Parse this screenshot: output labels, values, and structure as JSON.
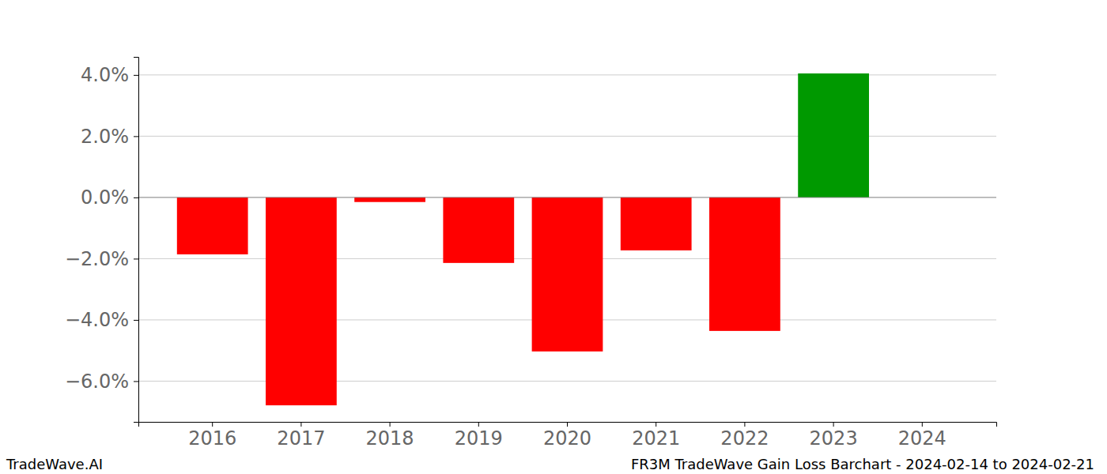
{
  "chart_data": {
    "type": "bar",
    "title": "FR3M TradeWave Gain Loss Barchart - 2024-02-14 to 2024-02-21",
    "annotations": [
      "TradeWave.AI"
    ],
    "categories": [
      "2016",
      "2017",
      "2018",
      "2019",
      "2020",
      "2021",
      "2022",
      "2023",
      "2024"
    ],
    "values": [
      -1.86,
      -6.79,
      -0.15,
      -2.14,
      -5.03,
      -1.73,
      -4.36,
      4.05,
      0
    ],
    "colors": [
      "#ff0000",
      "#ff0000",
      "#ff0000",
      "#ff0000",
      "#ff0000",
      "#ff0000",
      "#ff0000",
      "#009900",
      "#009900"
    ],
    "ylim": [
      -7.33,
      4.59
    ],
    "yticks": [
      {
        "value": -6,
        "label": "−6.0%"
      },
      {
        "value": -4,
        "label": "−4.0%"
      },
      {
        "value": -2,
        "label": "−2.0%"
      },
      {
        "value": 0,
        "label": "0.0%"
      },
      {
        "value": 2,
        "label": "2.0%"
      },
      {
        "value": 4,
        "label": "4.0%"
      }
    ],
    "grid": true
  }
}
